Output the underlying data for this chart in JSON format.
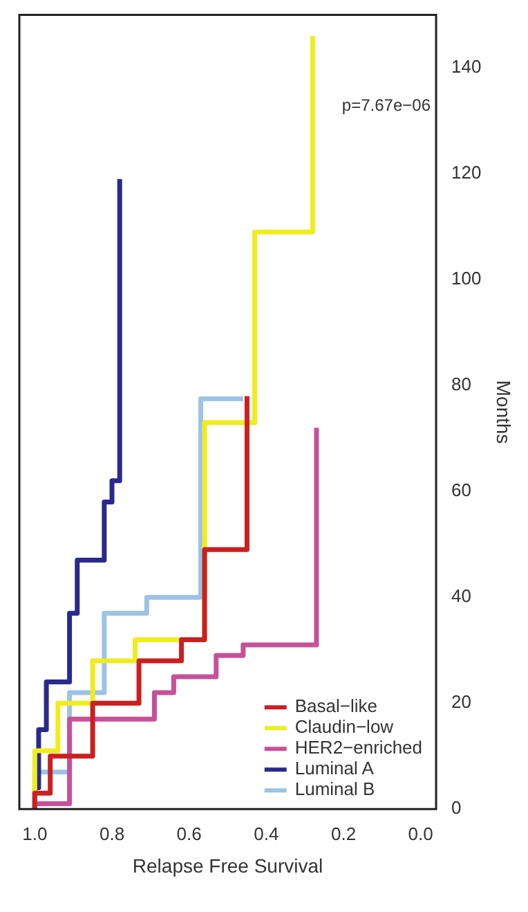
{
  "chart_data": {
    "type": "step",
    "xlabel": "Relapse Free Survival",
    "ylabel": "Months",
    "xlim": [
      1.04,
      -0.04
    ],
    "ylim": [
      0,
      150
    ],
    "xticks": [
      {
        "value": 1,
        "label": "1.0"
      },
      {
        "value": 0.8,
        "label": "0.8"
      },
      {
        "value": 0.6,
        "label": "0.6"
      },
      {
        "value": 0.4,
        "label": "0.4"
      },
      {
        "value": 0.2,
        "label": "0.2"
      },
      {
        "value": 0,
        "label": "0.0"
      }
    ],
    "yticks": [
      0,
      20,
      40,
      60,
      80,
      100,
      120,
      140
    ],
    "grid": false,
    "legend": "bottom right",
    "annotations": [
      "p=7.67e−06"
    ],
    "series": [
      {
        "name": "Basal−like",
        "color": "#cc1f1f",
        "x": [
          1,
          0.96,
          0.85,
          0.73,
          0.62,
          0.56,
          0.45,
          0.45
        ],
        "values": [
          0,
          3,
          10,
          20,
          28,
          32,
          49,
          78
        ]
      },
      {
        "name": "Claudin−low",
        "color": "#f0ec1e",
        "x": [
          1,
          0.94,
          0.85,
          0.74,
          0.56,
          0.43,
          0.28,
          0.28
        ],
        "values": [
          0,
          11,
          20,
          28,
          32,
          73,
          109,
          146
        ]
      },
      {
        "name": "HER2−enriched",
        "color": "#c8509a",
        "x": [
          1,
          0.91,
          0.69,
          0.64,
          0.53,
          0.46,
          0.27,
          0.27
        ],
        "values": [
          0,
          1,
          17,
          22,
          25,
          29,
          31,
          72
        ]
      },
      {
        "name": "Luminal A",
        "color": "#2a2a8c",
        "x": [
          1,
          0.99,
          0.97,
          0.91,
          0.89,
          0.82,
          0.8,
          0.78,
          0.78
        ],
        "values": [
          0,
          4,
          15,
          24,
          37,
          47,
          58,
          62,
          119
        ]
      },
      {
        "name": "Luminal B",
        "color": "#9cc3e6",
        "x": [
          1,
          0.91,
          0.82,
          0.71,
          0.57,
          0.46
        ],
        "values": [
          0,
          7,
          22,
          37,
          40,
          77.5
        ]
      }
    ]
  }
}
